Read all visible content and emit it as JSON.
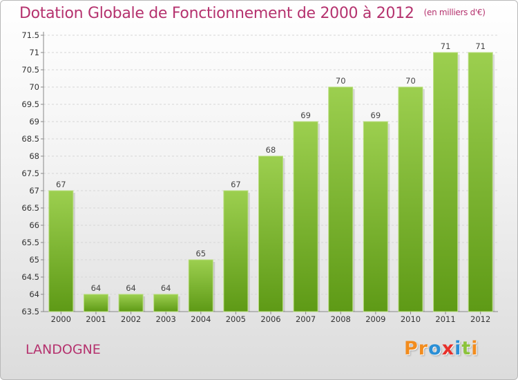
{
  "header": {
    "title": "Dotation Globale de Fonctionnement de 2000 à 2012",
    "subtitle": "(en milliers d'€)"
  },
  "footer": {
    "commune": "LANDOGNE",
    "logo_text": "Proxiti",
    "logo_colors": [
      "#f28c1e",
      "#f28c1e",
      "#2a8fd6",
      "#e8302a",
      "#2a8fd6",
      "#8cc33b",
      "#f28c1e"
    ]
  },
  "chart_data": {
    "type": "bar",
    "categories": [
      "2000",
      "2001",
      "2002",
      "2003",
      "2004",
      "2005",
      "2006",
      "2007",
      "2008",
      "2009",
      "2010",
      "2011",
      "2012"
    ],
    "values": [
      67,
      64,
      64,
      64,
      65,
      67,
      68,
      69,
      70,
      69,
      70,
      71,
      71
    ],
    "data_labels": [
      "67",
      "64",
      "64",
      "64",
      "65",
      "67",
      "68",
      "69",
      "70",
      "69",
      "70",
      "71",
      "71"
    ],
    "ylim": [
      63.5,
      71.5
    ],
    "yticks": [
      63.5,
      64,
      64.5,
      65,
      65.5,
      66,
      66.5,
      67,
      67.5,
      68,
      68.5,
      69,
      69.5,
      70,
      70.5,
      71,
      71.5
    ],
    "ytick_labels": [
      "63.5",
      "64",
      "64.5",
      "65",
      "65.5",
      "66",
      "66.5",
      "67",
      "67.5",
      "68",
      "68.5",
      "69",
      "69.5",
      "70",
      "70.5",
      "71",
      "71.5"
    ],
    "grid": true,
    "bar_color_top": "#9ccf4f",
    "bar_color_bottom": "#5e9a16"
  }
}
